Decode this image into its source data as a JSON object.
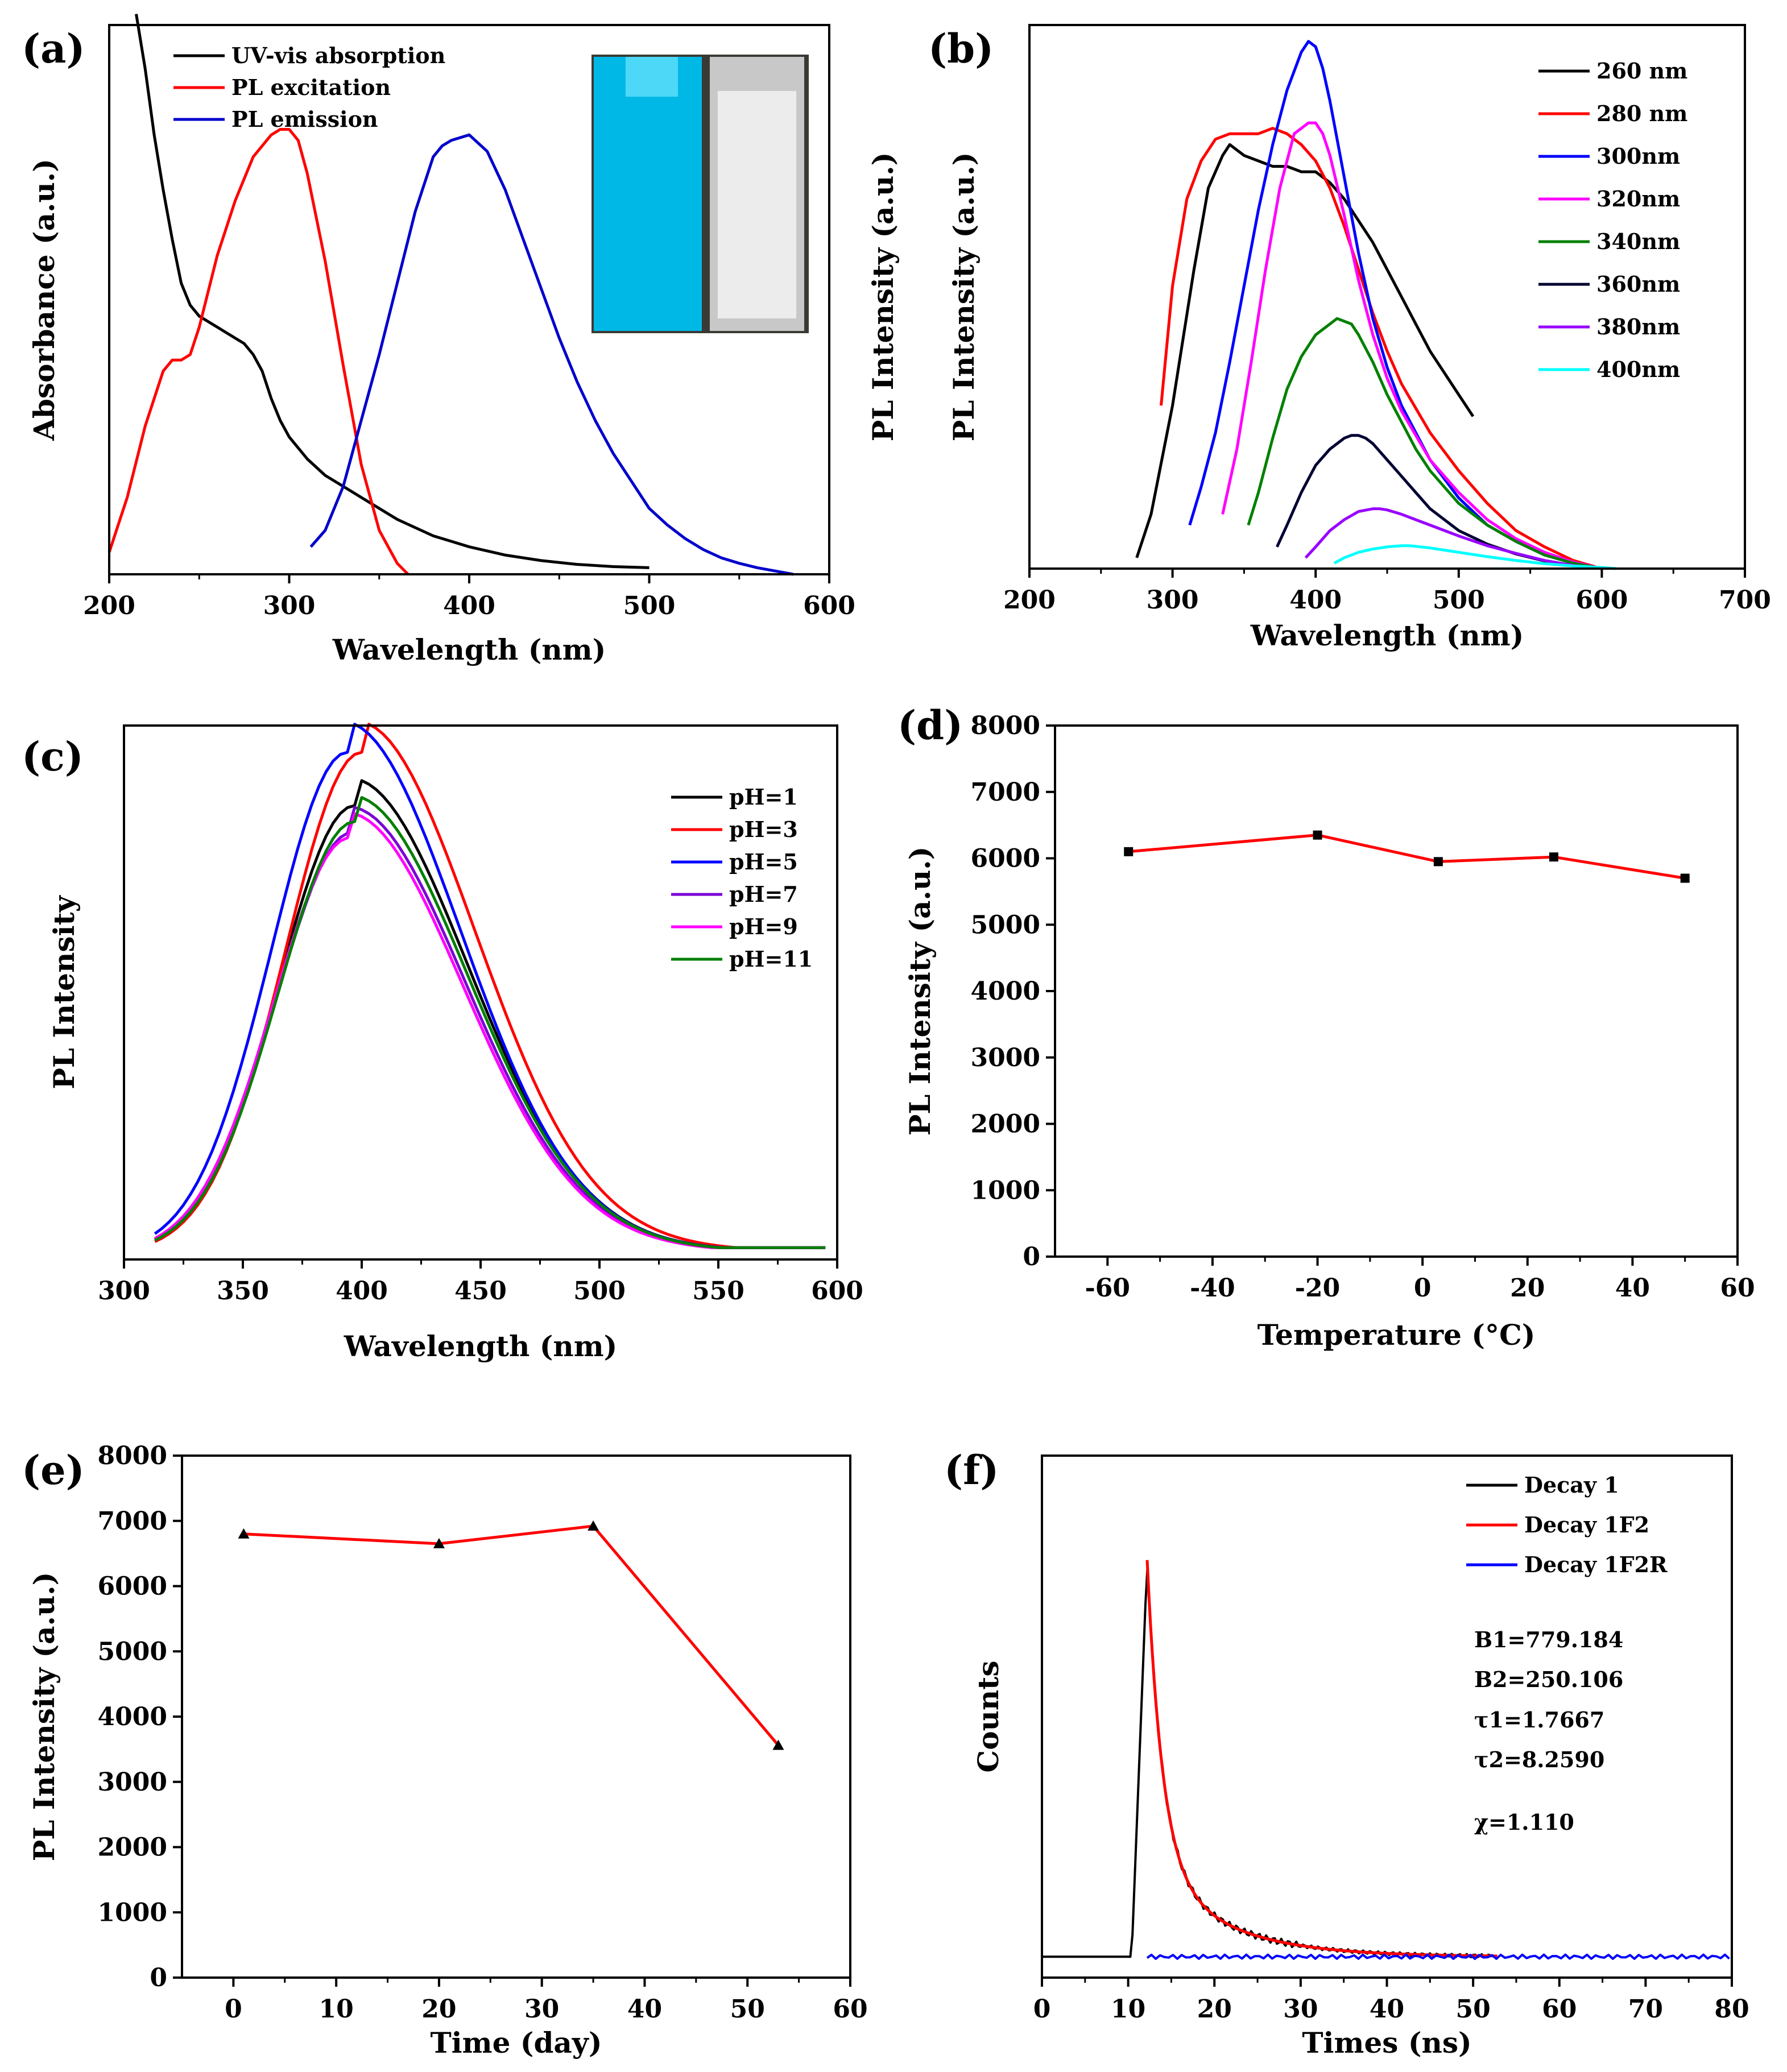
{
  "chart_data": [
    {
      "id": "a",
      "panel_label": "(a)",
      "type": "line",
      "xlabel": "Wavelength (nm)",
      "ylabel": "Absorbance (a.u.)",
      "xlim": [
        200,
        600
      ],
      "ylim": [
        0,
        1
      ],
      "xticks": [
        200,
        300,
        400,
        500,
        600
      ],
      "yticks": [],
      "legend_position": "top-left",
      "inset": {
        "description_colors": [
          "#00b8e6",
          "#f2f2f2"
        ]
      },
      "series": [
        {
          "name": "UV-vis absorption",
          "color": "#000000",
          "x": [
            215,
            220,
            225,
            230,
            235,
            240,
            245,
            250,
            260,
            270,
            275,
            280,
            285,
            290,
            295,
            300,
            310,
            320,
            330,
            340,
            350,
            360,
            370,
            380,
            390,
            400,
            420,
            440,
            460,
            480,
            500
          ],
          "y": [
            1.02,
            0.92,
            0.8,
            0.7,
            0.61,
            0.53,
            0.49,
            0.47,
            0.45,
            0.43,
            0.42,
            0.4,
            0.37,
            0.32,
            0.28,
            0.25,
            0.21,
            0.18,
            0.16,
            0.14,
            0.12,
            0.1,
            0.085,
            0.07,
            0.06,
            0.05,
            0.035,
            0.025,
            0.018,
            0.014,
            0.012
          ]
        },
        {
          "name": "PL excitation",
          "color": "#ff0000",
          "x": [
            200,
            210,
            220,
            230,
            235,
            240,
            245,
            250,
            260,
            270,
            280,
            290,
            295,
            300,
            305,
            310,
            320,
            330,
            340,
            350,
            360,
            366
          ],
          "y": [
            0.04,
            0.14,
            0.27,
            0.37,
            0.39,
            0.39,
            0.4,
            0.45,
            0.58,
            0.68,
            0.76,
            0.8,
            0.81,
            0.81,
            0.79,
            0.73,
            0.57,
            0.38,
            0.2,
            0.08,
            0.02,
            0.0
          ]
        },
        {
          "name": "PL emission",
          "color": "#0000cc",
          "x": [
            312,
            320,
            330,
            340,
            350,
            360,
            370,
            380,
            385,
            390,
            400,
            410,
            420,
            430,
            440,
            450,
            460,
            470,
            480,
            490,
            500,
            510,
            520,
            530,
            540,
            550,
            560,
            570,
            580
          ],
          "y": [
            0.05,
            0.08,
            0.16,
            0.28,
            0.4,
            0.53,
            0.66,
            0.76,
            0.78,
            0.79,
            0.8,
            0.77,
            0.7,
            0.61,
            0.52,
            0.43,
            0.35,
            0.28,
            0.22,
            0.17,
            0.12,
            0.09,
            0.065,
            0.045,
            0.03,
            0.02,
            0.012,
            0.006,
            0.0
          ]
        }
      ]
    },
    {
      "id": "b",
      "panel_label": "(b)",
      "type": "line",
      "xlabel": "Wavelength (nm)",
      "ylabel": "PL Intensity (a.u.)",
      "ylabel2": "PL Intensity (a.u.)",
      "xlim": [
        200,
        700
      ],
      "ylim": [
        0,
        1
      ],
      "xticks": [
        200,
        300,
        400,
        500,
        600,
        700
      ],
      "yticks": [],
      "legend_position": "top-right",
      "series": [
        {
          "name": "260 nm",
          "color": "#000000",
          "x": [
            275,
            285,
            300,
            315,
            325,
            335,
            340,
            345,
            350,
            360,
            370,
            380,
            390,
            400,
            410,
            420,
            430,
            440,
            450,
            460,
            470,
            480,
            490,
            500,
            510
          ],
          "y": [
            0.02,
            0.1,
            0.3,
            0.55,
            0.7,
            0.76,
            0.78,
            0.77,
            0.76,
            0.75,
            0.74,
            0.74,
            0.73,
            0.73,
            0.71,
            0.68,
            0.64,
            0.6,
            0.55,
            0.5,
            0.45,
            0.4,
            0.36,
            0.32,
            0.28
          ]
        },
        {
          "name": "280 nm",
          "color": "#ff0000",
          "x": [
            292,
            300,
            310,
            320,
            330,
            340,
            350,
            360,
            370,
            380,
            390,
            400,
            410,
            420,
            430,
            440,
            450,
            460,
            480,
            500,
            520,
            540,
            560,
            580,
            600
          ],
          "y": [
            0.3,
            0.52,
            0.68,
            0.75,
            0.79,
            0.8,
            0.8,
            0.8,
            0.81,
            0.8,
            0.78,
            0.75,
            0.7,
            0.63,
            0.55,
            0.47,
            0.4,
            0.34,
            0.25,
            0.18,
            0.12,
            0.07,
            0.04,
            0.015,
            0.0
          ]
        },
        {
          "name": "300nm",
          "color": "#0000ff",
          "x": [
            312,
            320,
            330,
            340,
            350,
            360,
            370,
            380,
            390,
            395,
            400,
            405,
            410,
            420,
            430,
            440,
            450,
            460,
            480,
            500,
            520,
            540,
            560,
            580,
            600
          ],
          "y": [
            0.08,
            0.15,
            0.25,
            0.38,
            0.52,
            0.66,
            0.78,
            0.88,
            0.95,
            0.97,
            0.96,
            0.92,
            0.86,
            0.72,
            0.58,
            0.46,
            0.37,
            0.3,
            0.2,
            0.13,
            0.08,
            0.05,
            0.025,
            0.01,
            0.0
          ]
        },
        {
          "name": "320nm",
          "color": "#ff00ff",
          "x": [
            335,
            345,
            355,
            365,
            375,
            385,
            395,
            400,
            405,
            410,
            420,
            430,
            440,
            450,
            460,
            480,
            500,
            520,
            540,
            560,
            580,
            600
          ],
          "y": [
            0.1,
            0.22,
            0.38,
            0.55,
            0.7,
            0.8,
            0.82,
            0.82,
            0.8,
            0.76,
            0.65,
            0.53,
            0.43,
            0.35,
            0.29,
            0.2,
            0.14,
            0.09,
            0.055,
            0.03,
            0.012,
            0.0
          ]
        },
        {
          "name": "340nm",
          "color": "#008000",
          "x": [
            353,
            360,
            370,
            380,
            390,
            400,
            410,
            415,
            420,
            425,
            430,
            440,
            450,
            460,
            470,
            480,
            500,
            520,
            540,
            560,
            580,
            600
          ],
          "y": [
            0.08,
            0.14,
            0.24,
            0.33,
            0.39,
            0.43,
            0.45,
            0.46,
            0.455,
            0.45,
            0.43,
            0.38,
            0.32,
            0.27,
            0.22,
            0.18,
            0.12,
            0.08,
            0.05,
            0.025,
            0.01,
            0.0
          ]
        },
        {
          "name": "360nm",
          "color": "#000033",
          "x": [
            373,
            380,
            390,
            400,
            410,
            420,
            425,
            430,
            435,
            440,
            450,
            460,
            470,
            480,
            500,
            520,
            540,
            560,
            580,
            600
          ],
          "y": [
            0.04,
            0.08,
            0.14,
            0.19,
            0.22,
            0.24,
            0.245,
            0.245,
            0.24,
            0.23,
            0.2,
            0.17,
            0.14,
            0.11,
            0.07,
            0.045,
            0.027,
            0.014,
            0.006,
            0.0
          ]
        },
        {
          "name": "380nm",
          "color": "#9900ff",
          "x": [
            393,
            400,
            410,
            420,
            430,
            440,
            445,
            450,
            460,
            470,
            480,
            500,
            520,
            540,
            560,
            580,
            600
          ],
          "y": [
            0.02,
            0.04,
            0.07,
            0.09,
            0.105,
            0.11,
            0.11,
            0.108,
            0.1,
            0.09,
            0.08,
            0.06,
            0.042,
            0.028,
            0.015,
            0.006,
            0.0
          ]
        },
        {
          "name": "400nm",
          "color": "#00ffff",
          "x": [
            413,
            420,
            430,
            440,
            450,
            460,
            465,
            470,
            480,
            490,
            500,
            520,
            540,
            560,
            580,
            600,
            610
          ],
          "y": [
            0.01,
            0.02,
            0.03,
            0.036,
            0.04,
            0.042,
            0.042,
            0.041,
            0.038,
            0.034,
            0.03,
            0.022,
            0.015,
            0.009,
            0.005,
            0.002,
            0.0
          ]
        }
      ]
    },
    {
      "id": "c",
      "panel_label": "(c)",
      "type": "line",
      "xlabel": "Wavelength (nm)",
      "ylabel": "PL Intensity",
      "xlim": [
        300,
        600
      ],
      "ylim": [
        0,
        1
      ],
      "xticks": [
        300,
        350,
        400,
        450,
        500,
        550,
        600
      ],
      "yticks": [],
      "legend_position": "top-right",
      "series": [
        {
          "name": "pH=1",
          "color": "#000000",
          "peak": 0.84,
          "shift": 0
        },
        {
          "name": "pH=3",
          "color": "#ff0000",
          "peak": 0.94,
          "shift": 3
        },
        {
          "name": "pH=5",
          "color": "#0000ff",
          "peak": 0.94,
          "shift": -3
        },
        {
          "name": "pH=7",
          "color": "#7b00d6",
          "peak": 0.79,
          "shift": -1
        },
        {
          "name": "pH=9",
          "color": "#ff00ff",
          "peak": 0.78,
          "shift": -2
        },
        {
          "name": "pH=11",
          "color": "#008000",
          "peak": 0.81,
          "shift": 0
        }
      ],
      "x_range": [
        313,
        595
      ],
      "peak_x": 397
    },
    {
      "id": "d",
      "panel_label": "(d)",
      "type": "line",
      "xlabel": "Temperature (°C)",
      "ylabel": "PL Intensity (a.u.)",
      "xlim": [
        -70,
        60
      ],
      "ylim": [
        0,
        8000
      ],
      "xticks": [
        -60,
        -40,
        -20,
        0,
        20,
        40,
        60
      ],
      "yticks": [
        0,
        1000,
        2000,
        3000,
        4000,
        5000,
        6000,
        7000,
        8000
      ],
      "series": [
        {
          "name": "PL Intensity",
          "color": "#ff0000",
          "marker": "square",
          "x": [
            -56,
            -20,
            3,
            25,
            50
          ],
          "y": [
            6100,
            6350,
            5950,
            6020,
            5700
          ]
        }
      ]
    },
    {
      "id": "e",
      "panel_label": "(e)",
      "type": "line",
      "xlabel": "Time (day)",
      "ylabel": "PL Intensity (a.u.)",
      "xlim": [
        -5,
        60
      ],
      "ylim": [
        0,
        8000
      ],
      "xticks": [
        0,
        10,
        20,
        30,
        40,
        50,
        60
      ],
      "yticks": [
        0,
        1000,
        2000,
        3000,
        4000,
        5000,
        6000,
        7000,
        8000
      ],
      "series": [
        {
          "name": "PL Intensity",
          "color": "#ff0000",
          "marker": "triangle",
          "x": [
            1,
            20,
            35,
            53
          ],
          "y": [
            6800,
            6650,
            6920,
            3560
          ]
        }
      ]
    },
    {
      "id": "f",
      "panel_label": "(f)",
      "type": "line",
      "xlabel": "Times (ns)",
      "ylabel": "Counts",
      "xlim": [
        0,
        80
      ],
      "ylim": [
        0,
        1
      ],
      "xticks": [
        0,
        10,
        20,
        30,
        40,
        50,
        60,
        70,
        80
      ],
      "yticks": [],
      "legend_position": "top-right",
      "series": [
        {
          "name": "Decay 1",
          "color": "#000000"
        },
        {
          "name": "Decay 1F2",
          "color": "#ff0000"
        },
        {
          "name": "Decay 1F2R",
          "color": "#0000ff"
        }
      ],
      "annotations": [
        "B1=779.184",
        "B2=250.106",
        "τ1=1.7667",
        "τ2=8.2590",
        "χ=1.110"
      ],
      "fit": {
        "B1": 779.184,
        "B2": 250.106,
        "tau1": 1.7667,
        "tau2": 8.259,
        "t0": 12.2,
        "rise_start": 10.4
      }
    }
  ]
}
